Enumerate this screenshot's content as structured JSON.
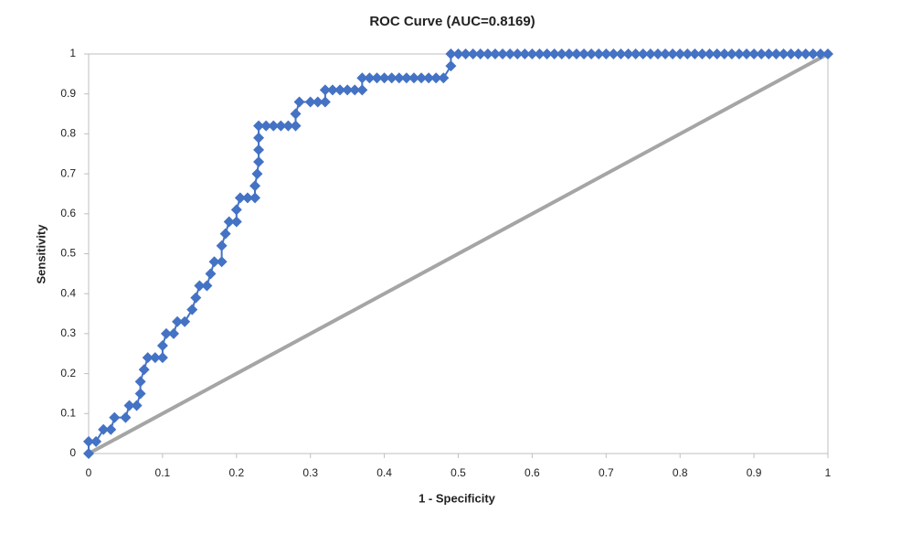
{
  "chart_data": {
    "type": "line",
    "title": "ROC Curve (AUC=0.8169)",
    "x_label": "1 - Specificity",
    "y_label": "Sensitivity",
    "xlim": [
      0,
      1
    ],
    "ylim": [
      0,
      1
    ],
    "xticks": [
      0,
      0.1,
      0.2,
      0.3,
      0.4,
      0.5,
      0.6,
      0.7,
      0.8,
      0.9,
      1
    ],
    "yticks": [
      0,
      0.1,
      0.2,
      0.3,
      0.4,
      0.5,
      0.6,
      0.7,
      0.8,
      0.9,
      1
    ],
    "grid": false,
    "series": [
      {
        "color": "#4472c4",
        "marker": "diamond",
        "x": [
          0,
          0,
          0.01,
          0.02,
          0.03,
          0.035,
          0.05,
          0.055,
          0.065,
          0.07,
          0.07,
          0.075,
          0.08,
          0.09,
          0.1,
          0.1,
          0.105,
          0.115,
          0.12,
          0.13,
          0.14,
          0.145,
          0.15,
          0.16,
          0.165,
          0.17,
          0.18,
          0.18,
          0.185,
          0.19,
          0.2,
          0.2,
          0.205,
          0.215,
          0.225,
          0.225,
          0.228,
          0.23,
          0.23,
          0.23,
          0.23,
          0.24,
          0.25,
          0.26,
          0.27,
          0.28,
          0.28,
          0.285,
          0.3,
          0.31,
          0.32,
          0.32,
          0.33,
          0.34,
          0.35,
          0.36,
          0.37,
          0.37,
          0.38,
          0.39,
          0.4,
          0.41,
          0.42,
          0.43,
          0.44,
          0.45,
          0.46,
          0.47,
          0.48,
          0.49,
          0.49,
          0.5,
          0.51,
          0.52,
          0.53,
          0.54,
          0.55,
          0.56,
          0.57,
          0.58,
          0.59,
          0.6,
          0.61,
          0.62,
          0.63,
          0.64,
          0.65,
          0.66,
          0.67,
          0.68,
          0.69,
          0.7,
          0.71,
          0.72,
          0.73,
          0.74,
          0.75,
          0.76,
          0.77,
          0.78,
          0.79,
          0.8,
          0.81,
          0.82,
          0.83,
          0.84,
          0.85,
          0.86,
          0.87,
          0.88,
          0.89,
          0.9,
          0.91,
          0.92,
          0.93,
          0.94,
          0.95,
          0.96,
          0.97,
          0.98,
          0.99,
          1
        ],
        "values": [
          0,
          0.03,
          0.03,
          0.06,
          0.06,
          0.09,
          0.09,
          0.12,
          0.12,
          0.15,
          0.18,
          0.21,
          0.24,
          0.24,
          0.24,
          0.27,
          0.3,
          0.3,
          0.33,
          0.33,
          0.36,
          0.39,
          0.42,
          0.42,
          0.45,
          0.48,
          0.48,
          0.52,
          0.55,
          0.58,
          0.58,
          0.61,
          0.64,
          0.64,
          0.64,
          0.67,
          0.7,
          0.73,
          0.76,
          0.79,
          0.82,
          0.82,
          0.82,
          0.82,
          0.82,
          0.82,
          0.85,
          0.88,
          0.88,
          0.88,
          0.88,
          0.91,
          0.91,
          0.91,
          0.91,
          0.91,
          0.91,
          0.94,
          0.94,
          0.94,
          0.94,
          0.94,
          0.94,
          0.94,
          0.94,
          0.94,
          0.94,
          0.94,
          0.94,
          0.97,
          1,
          1,
          1,
          1,
          1,
          1,
          1,
          1,
          1,
          1,
          1,
          1,
          1,
          1,
          1,
          1,
          1,
          1,
          1,
          1,
          1,
          1,
          1,
          1,
          1,
          1,
          1,
          1,
          1,
          1,
          1,
          1,
          1,
          1,
          1,
          1,
          1,
          1,
          1,
          1,
          1,
          1,
          1,
          1,
          1,
          1,
          1,
          1,
          1,
          1,
          1,
          1
        ]
      },
      {
        "color": "#a5a5a5",
        "marker": "none",
        "x": [
          0,
          1
        ],
        "values": [
          0,
          1
        ]
      }
    ]
  }
}
